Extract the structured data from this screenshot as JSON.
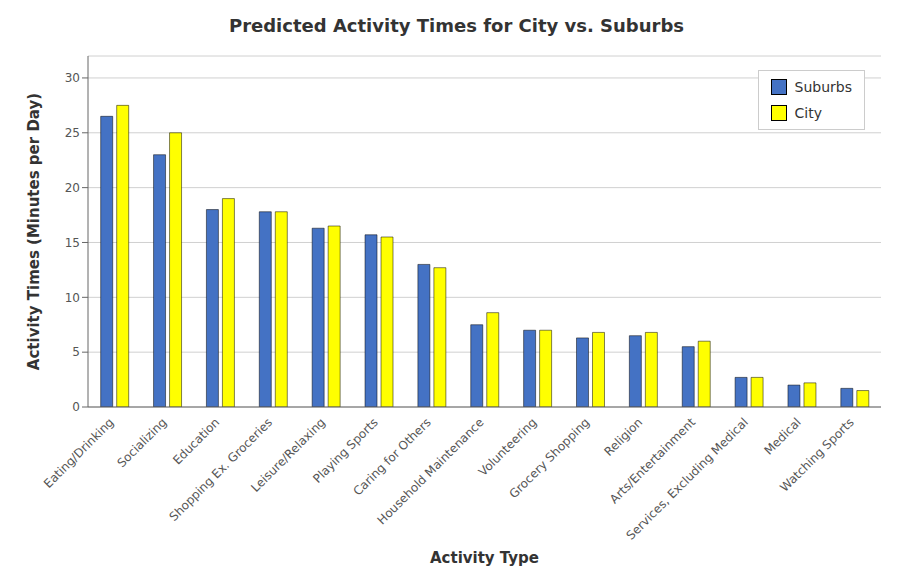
{
  "chart_data": {
    "type": "bar",
    "title": "Predicted Activity Times for City vs. Suburbs",
    "xlabel": "Activity Type",
    "ylabel": "Activity Times (Minutes per Day)",
    "categories": [
      "Eating/Drinking",
      "Socializing",
      "Education",
      "Shopping Ex. Groceries",
      "Leisure/Relaxing",
      "Playing Sports",
      "Caring for Others",
      "Household Maintenance",
      "Volunteering",
      "Grocery Shopping",
      "Religion",
      "Arts/Entertainment",
      "Services, Excluding Medical",
      "Medical",
      "Watching Sports"
    ],
    "series": [
      {
        "name": "Suburbs",
        "color": "#4472C4",
        "values": [
          26.5,
          23.0,
          18.0,
          17.8,
          16.3,
          15.7,
          13.0,
          7.5,
          7.0,
          6.3,
          6.5,
          5.5,
          2.7,
          2.0,
          1.7
        ]
      },
      {
        "name": "City",
        "color": "#FFFF00",
        "values": [
          27.5,
          25.0,
          19.0,
          17.8,
          16.5,
          15.5,
          12.7,
          8.6,
          7.0,
          6.8,
          6.8,
          6.0,
          2.7,
          2.2,
          1.5
        ]
      }
    ],
    "ylim": [
      0,
      32
    ],
    "yticks": [
      0,
      5,
      10,
      15,
      20,
      25,
      30
    ],
    "grid": true,
    "legend": "upper right"
  }
}
